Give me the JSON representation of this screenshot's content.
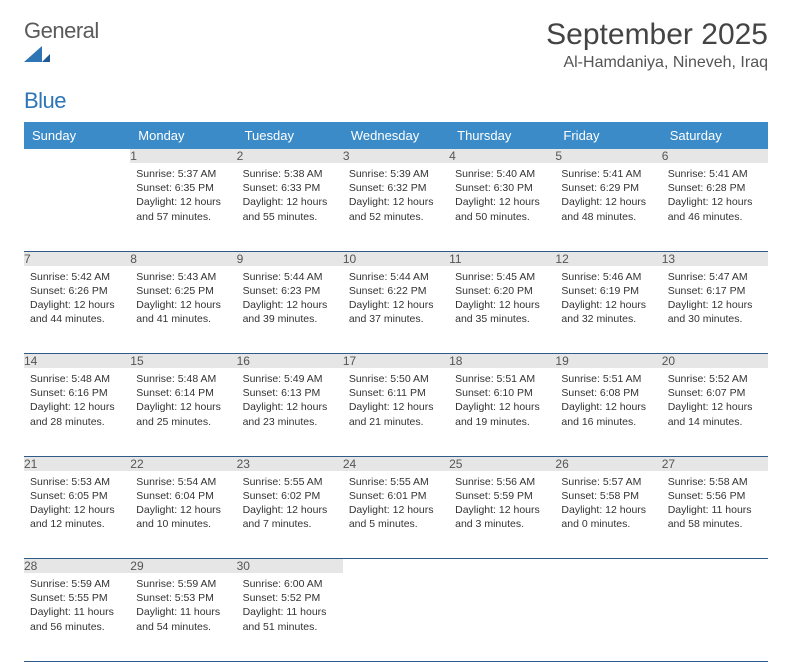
{
  "logo": {
    "text_left": "General",
    "text_right": "Blue",
    "mark_color": "#2e75b6"
  },
  "title": "September 2025",
  "location": "Al-Hamdaniya, Nineveh, Iraq",
  "colors": {
    "header_bg": "#3b8bc8",
    "header_fg": "#ffffff",
    "daynum_bg": "#e6e6e6",
    "row_border": "#2e5b8a",
    "body_text": "#333333"
  },
  "weekdays": [
    "Sunday",
    "Monday",
    "Tuesday",
    "Wednesday",
    "Thursday",
    "Friday",
    "Saturday"
  ],
  "start_offset": 1,
  "days": [
    {
      "n": 1,
      "sunrise": "5:37 AM",
      "sunset": "6:35 PM",
      "daylight": "12 hours and 57 minutes."
    },
    {
      "n": 2,
      "sunrise": "5:38 AM",
      "sunset": "6:33 PM",
      "daylight": "12 hours and 55 minutes."
    },
    {
      "n": 3,
      "sunrise": "5:39 AM",
      "sunset": "6:32 PM",
      "daylight": "12 hours and 52 minutes."
    },
    {
      "n": 4,
      "sunrise": "5:40 AM",
      "sunset": "6:30 PM",
      "daylight": "12 hours and 50 minutes."
    },
    {
      "n": 5,
      "sunrise": "5:41 AM",
      "sunset": "6:29 PM",
      "daylight": "12 hours and 48 minutes."
    },
    {
      "n": 6,
      "sunrise": "5:41 AM",
      "sunset": "6:28 PM",
      "daylight": "12 hours and 46 minutes."
    },
    {
      "n": 7,
      "sunrise": "5:42 AM",
      "sunset": "6:26 PM",
      "daylight": "12 hours and 44 minutes."
    },
    {
      "n": 8,
      "sunrise": "5:43 AM",
      "sunset": "6:25 PM",
      "daylight": "12 hours and 41 minutes."
    },
    {
      "n": 9,
      "sunrise": "5:44 AM",
      "sunset": "6:23 PM",
      "daylight": "12 hours and 39 minutes."
    },
    {
      "n": 10,
      "sunrise": "5:44 AM",
      "sunset": "6:22 PM",
      "daylight": "12 hours and 37 minutes."
    },
    {
      "n": 11,
      "sunrise": "5:45 AM",
      "sunset": "6:20 PM",
      "daylight": "12 hours and 35 minutes."
    },
    {
      "n": 12,
      "sunrise": "5:46 AM",
      "sunset": "6:19 PM",
      "daylight": "12 hours and 32 minutes."
    },
    {
      "n": 13,
      "sunrise": "5:47 AM",
      "sunset": "6:17 PM",
      "daylight": "12 hours and 30 minutes."
    },
    {
      "n": 14,
      "sunrise": "5:48 AM",
      "sunset": "6:16 PM",
      "daylight": "12 hours and 28 minutes."
    },
    {
      "n": 15,
      "sunrise": "5:48 AM",
      "sunset": "6:14 PM",
      "daylight": "12 hours and 25 minutes."
    },
    {
      "n": 16,
      "sunrise": "5:49 AM",
      "sunset": "6:13 PM",
      "daylight": "12 hours and 23 minutes."
    },
    {
      "n": 17,
      "sunrise": "5:50 AM",
      "sunset": "6:11 PM",
      "daylight": "12 hours and 21 minutes."
    },
    {
      "n": 18,
      "sunrise": "5:51 AM",
      "sunset": "6:10 PM",
      "daylight": "12 hours and 19 minutes."
    },
    {
      "n": 19,
      "sunrise": "5:51 AM",
      "sunset": "6:08 PM",
      "daylight": "12 hours and 16 minutes."
    },
    {
      "n": 20,
      "sunrise": "5:52 AM",
      "sunset": "6:07 PM",
      "daylight": "12 hours and 14 minutes."
    },
    {
      "n": 21,
      "sunrise": "5:53 AM",
      "sunset": "6:05 PM",
      "daylight": "12 hours and 12 minutes."
    },
    {
      "n": 22,
      "sunrise": "5:54 AM",
      "sunset": "6:04 PM",
      "daylight": "12 hours and 10 minutes."
    },
    {
      "n": 23,
      "sunrise": "5:55 AM",
      "sunset": "6:02 PM",
      "daylight": "12 hours and 7 minutes."
    },
    {
      "n": 24,
      "sunrise": "5:55 AM",
      "sunset": "6:01 PM",
      "daylight": "12 hours and 5 minutes."
    },
    {
      "n": 25,
      "sunrise": "5:56 AM",
      "sunset": "5:59 PM",
      "daylight": "12 hours and 3 minutes."
    },
    {
      "n": 26,
      "sunrise": "5:57 AM",
      "sunset": "5:58 PM",
      "daylight": "12 hours and 0 minutes."
    },
    {
      "n": 27,
      "sunrise": "5:58 AM",
      "sunset": "5:56 PM",
      "daylight": "11 hours and 58 minutes."
    },
    {
      "n": 28,
      "sunrise": "5:59 AM",
      "sunset": "5:55 PM",
      "daylight": "11 hours and 56 minutes."
    },
    {
      "n": 29,
      "sunrise": "5:59 AM",
      "sunset": "5:53 PM",
      "daylight": "11 hours and 54 minutes."
    },
    {
      "n": 30,
      "sunrise": "6:00 AM",
      "sunset": "5:52 PM",
      "daylight": "11 hours and 51 minutes."
    }
  ],
  "labels": {
    "sunrise": "Sunrise:",
    "sunset": "Sunset:",
    "daylight": "Daylight:"
  }
}
